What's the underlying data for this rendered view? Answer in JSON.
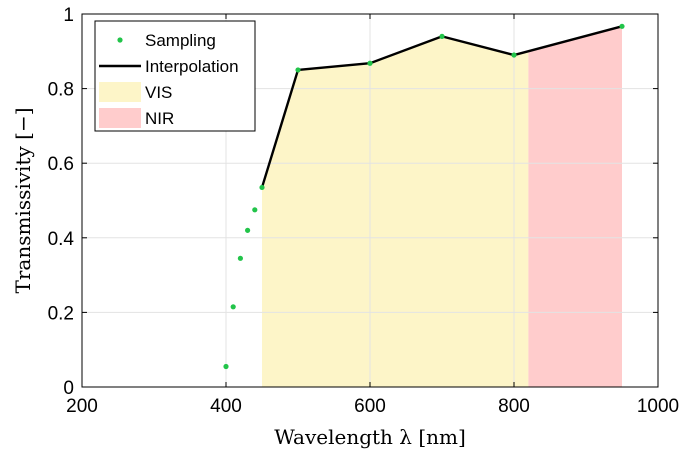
{
  "chart_data": {
    "type": "line",
    "xlabel": "Wavelength λ [nm]",
    "ylabel": "Transmissivity [−]",
    "xlim": [
      200,
      1000
    ],
    "ylim": [
      0,
      1
    ],
    "xticks": [
      "200",
      "400",
      "600",
      "800",
      "1000"
    ],
    "yticks": [
      "0",
      "0.2",
      "0.4",
      "0.6",
      "0.8",
      "1"
    ],
    "grid": true,
    "legend_position": "top-left",
    "regions": [
      {
        "name": "VIS",
        "x_start": 450,
        "x_end": 820,
        "color": "#fdf5c8"
      },
      {
        "name": "NIR",
        "x_start": 820,
        "x_end": 950,
        "color": "#ffcccc"
      }
    ],
    "series": [
      {
        "name": "Sampling",
        "style": "markers",
        "color": "#22c44a",
        "x": [
          400,
          410,
          420,
          430,
          440,
          450,
          500,
          600,
          700,
          800,
          950
        ],
        "y": [
          0.055,
          0.215,
          0.345,
          0.42,
          0.475,
          0.535,
          0.85,
          0.868,
          0.94,
          0.89,
          0.967
        ]
      },
      {
        "name": "Interpolation",
        "style": "line",
        "color": "#000000",
        "x": [
          450,
          500,
          600,
          700,
          800,
          950
        ],
        "y": [
          0.535,
          0.85,
          0.868,
          0.94,
          0.89,
          0.967
        ]
      }
    ]
  }
}
